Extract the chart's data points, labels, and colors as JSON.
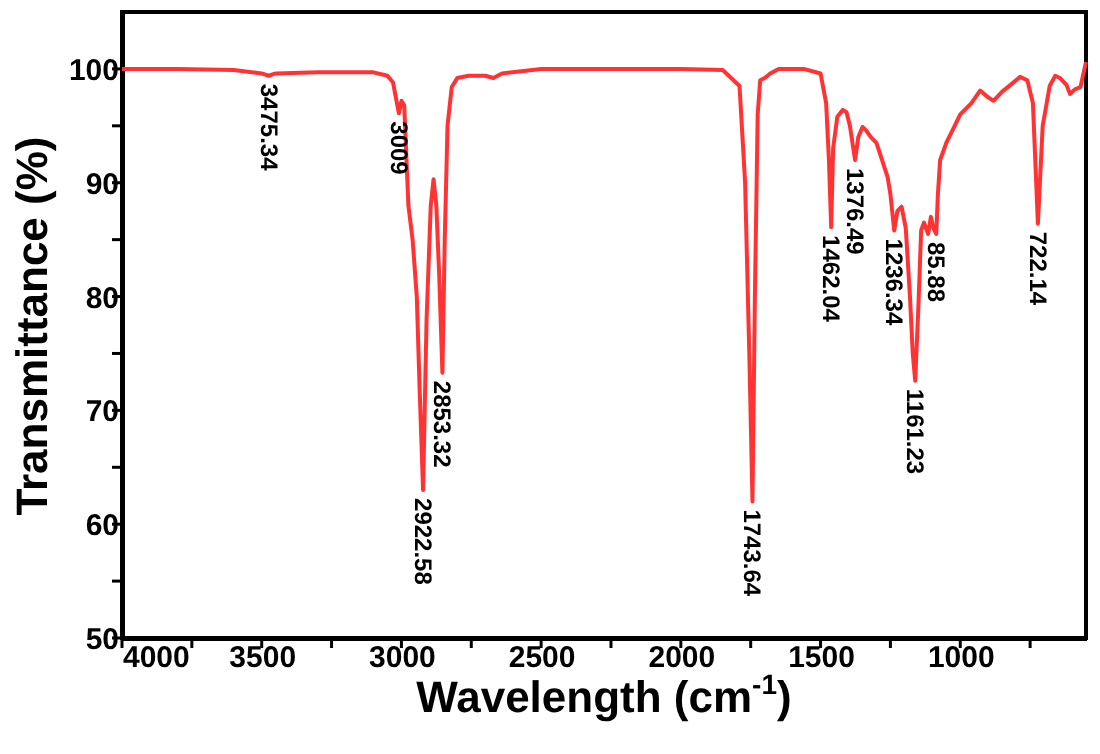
{
  "chart_data": {
    "type": "line",
    "xlabel": "Wavelength (cm$^{-1}$)",
    "ylabel": "Transmittance (%)",
    "xlim": [
      4000,
      550
    ],
    "ylim": [
      50,
      105
    ],
    "xticks": [
      4000,
      {
        "value": 3750,
        "label": null
      },
      3500,
      {
        "value": 3250,
        "label": null
      },
      3000,
      {
        "value": 2750,
        "label": null
      },
      2500,
      {
        "value": 2250,
        "label": null
      },
      2000,
      {
        "value": 1750,
        "label": null
      },
      1500,
      {
        "value": 1250,
        "label": null
      },
      1000,
      {
        "value": 750,
        "label": null
      }
    ],
    "yticks": [
      50,
      {
        "value": 55,
        "label": null
      },
      60,
      {
        "value": 65,
        "label": null
      },
      70,
      {
        "value": 75,
        "label": null
      },
      80,
      {
        "value": 85,
        "label": null
      },
      90,
      {
        "value": 95,
        "label": null
      },
      100
    ],
    "grid": false,
    "series": [
      {
        "color": "#ff3333",
        "x": [
          4000,
          3800,
          3600,
          3500,
          3475.34,
          3450,
          3300,
          3100,
          3050,
          3030,
          3009,
          3000,
          2990,
          2975,
          2960,
          2945,
          2935,
          2922.58,
          2910,
          2895,
          2885,
          2875,
          2865,
          2853.32,
          2845,
          2835,
          2820,
          2800,
          2760,
          2700,
          2671,
          2640,
          2500,
          2200,
          2000,
          1850,
          1790,
          1770,
          1755,
          1743.64,
          1735,
          1725,
          1716,
          1700,
          1680,
          1650,
          1560,
          1500,
          1480,
          1470,
          1462.04,
          1455,
          1440,
          1420,
          1407,
          1395,
          1376.49,
          1365,
          1350,
          1337,
          1320,
          1300,
          1280,
          1260,
          1250,
          1236.34,
          1225,
          1210,
          1195,
          1180,
          1170,
          1161.23,
          1150,
          1140,
          1130,
          1115,
          1105,
          1096,
          1085.88,
          1080,
          1072,
          1050,
          1020,
          1000,
          960,
          929,
          900,
          881,
          850,
          820,
          786,
          760,
          740,
          722.14,
          705,
          680,
          660,
          643,
          620,
          607,
          590,
          570,
          550
        ],
        "values": [
          100,
          100,
          99.9,
          99.6,
          99.4,
          99.6,
          99.7,
          99.7,
          99.4,
          98.8,
          96.1,
          97.2,
          96.8,
          88,
          85,
          80,
          72,
          63,
          78,
          88,
          90.3,
          88,
          82,
          73.3,
          85,
          95,
          98.4,
          99.2,
          99.4,
          99.4,
          99.2,
          99.6,
          100,
          100,
          100,
          99.9,
          98.5,
          90,
          75,
          62,
          80,
          96,
          99,
          99.2,
          99.6,
          100,
          100,
          99.6,
          97,
          92,
          86.1,
          93,
          95.8,
          96.4,
          96.2,
          95,
          92,
          94,
          94.9,
          94.6,
          94,
          93.5,
          92,
          90.5,
          89,
          85.8,
          87.5,
          87.9,
          86,
          80,
          75,
          72.6,
          79,
          85.8,
          86.5,
          85.5,
          87,
          86,
          85.5,
          89,
          92,
          93.5,
          95,
          96,
          97,
          98.1,
          97.5,
          97.2,
          98,
          98.6,
          99.3,
          99,
          97,
          86.4,
          95,
          98.5,
          99.4,
          99.2,
          98.6,
          97.8,
          98.2,
          98.4,
          100.6
        ]
      }
    ],
    "annotations": [
      {
        "text": "3475.34",
        "x": 3475.34,
        "y": 99.4
      },
      {
        "text": "3009",
        "x": 3009,
        "y": 96.1
      },
      {
        "text": "2922.58",
        "x": 2922.58,
        "y": 63
      },
      {
        "text": "2853.32",
        "x": 2853.32,
        "y": 73.3
      },
      {
        "text": "1743.64",
        "x": 1743.64,
        "y": 62
      },
      {
        "text": "1462.04",
        "x": 1462.04,
        "y": 86.1
      },
      {
        "text": "1376.49",
        "x": 1376.49,
        "y": 92
      },
      {
        "text": "1236.34",
        "x": 1236.34,
        "y": 85.8
      },
      {
        "text": "1161.23",
        "x": 1161.23,
        "y": 72.6
      },
      {
        "text": "85.88",
        "x": 1085.88,
        "y": 85.5
      },
      {
        "text": "722.14",
        "x": 722.14,
        "y": 86.4
      }
    ]
  }
}
